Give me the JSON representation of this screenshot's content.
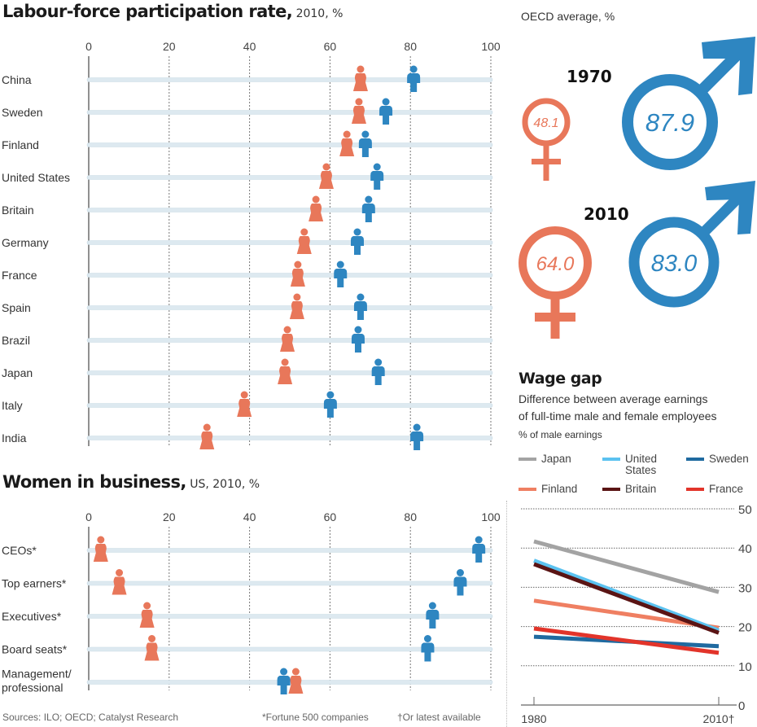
{
  "colors": {
    "female": "#e8775a",
    "male": "#2e86c1",
    "track": "#dde9f0",
    "grid": "#555555"
  },
  "labour": {
    "title": "Labour-force participation rate,",
    "subtitle": " 2010, %"
  },
  "business": {
    "title": "Women in business,",
    "subtitle": " US, 2010, %"
  },
  "oecd": {
    "label": "OECD average, %",
    "years": [
      {
        "year": "1970",
        "female": "48.1",
        "male": "87.9"
      },
      {
        "year": "2010",
        "female": "64.0",
        "male": "83.0"
      }
    ]
  },
  "wage": {
    "title": "Wage gap",
    "subtitle_line1": "Difference between average earnings",
    "subtitle_line2": "of full-time male and female employees",
    "unit": "% of male earnings"
  },
  "footer": {
    "sources": "Sources: ILO; OECD; Catalyst Research",
    "note1": "*Fortune 500 companies",
    "note2": "†Or latest available"
  },
  "chart_data": [
    {
      "type": "scatter",
      "title": "Labour-force participation rate, 2010, %",
      "xlim": [
        0,
        100
      ],
      "xticks": [
        "0",
        "20",
        "40",
        "60",
        "80",
        "100"
      ],
      "categories": [
        "China",
        "Sweden",
        "Finland",
        "United States",
        "Britain",
        "Germany",
        "France",
        "Spain",
        "Brazil",
        "Japan",
        "Italy",
        "India"
      ],
      "series": [
        {
          "name": "Women",
          "values": [
            67.6,
            67.2,
            64.2,
            59.1,
            56.5,
            53.6,
            52.0,
            51.8,
            49.4,
            48.8,
            38.7,
            29.4
          ]
        },
        {
          "name": "Men",
          "values": [
            80.8,
            73.9,
            68.8,
            71.7,
            69.6,
            66.8,
            62.6,
            67.6,
            67.0,
            72.0,
            60.1,
            81.6
          ]
        }
      ],
      "grid": true
    },
    {
      "type": "scatter",
      "title": "Women in business, US, 2010, %",
      "xlim": [
        0,
        100
      ],
      "xticks": [
        "0",
        "20",
        "40",
        "60",
        "80",
        "100"
      ],
      "categories": [
        "CEOs*",
        "Top earners*",
        "Executives*",
        "Board seats*",
        "Management/\nprofessional"
      ],
      "category_lines": [
        [
          "CEOs*"
        ],
        [
          "Top earners*"
        ],
        [
          "Executives*"
        ],
        [
          "Board seats*"
        ],
        [
          "Management/",
          "professional"
        ]
      ],
      "series": [
        {
          "name": "Women",
          "values": [
            3.0,
            7.6,
            14.5,
            15.7,
            51.5
          ]
        },
        {
          "name": "Men",
          "values": [
            97.0,
            92.4,
            85.5,
            84.3,
            48.5
          ]
        }
      ],
      "grid": true
    },
    {
      "type": "line",
      "title": "Wage gap",
      "ylabel": "% of male earnings",
      "x": [
        "1980",
        "2010†"
      ],
      "ylim": [
        0,
        50
      ],
      "yticks": [
        "0",
        "10",
        "20",
        "30",
        "40",
        "50"
      ],
      "legend": "top",
      "series": [
        {
          "name": "Japan",
          "color": "#a3a3a3",
          "values": [
            41.7,
            28.8
          ]
        },
        {
          "name": "United States",
          "label_lines": [
            "United",
            "States"
          ],
          "color": "#5bc2f0",
          "values": [
            36.8,
            19.0
          ]
        },
        {
          "name": "Sweden",
          "color": "#1f6aa0",
          "values": [
            17.4,
            15.0
          ]
        },
        {
          "name": "Finland",
          "color": "#ef7f62",
          "values": [
            26.6,
            19.7
          ]
        },
        {
          "name": "Britain",
          "color": "#5a1414",
          "values": [
            35.9,
            18.4
          ]
        },
        {
          "name": "France",
          "color": "#e2342a",
          "values": [
            19.5,
            13.3
          ]
        }
      ],
      "grid": true
    }
  ]
}
